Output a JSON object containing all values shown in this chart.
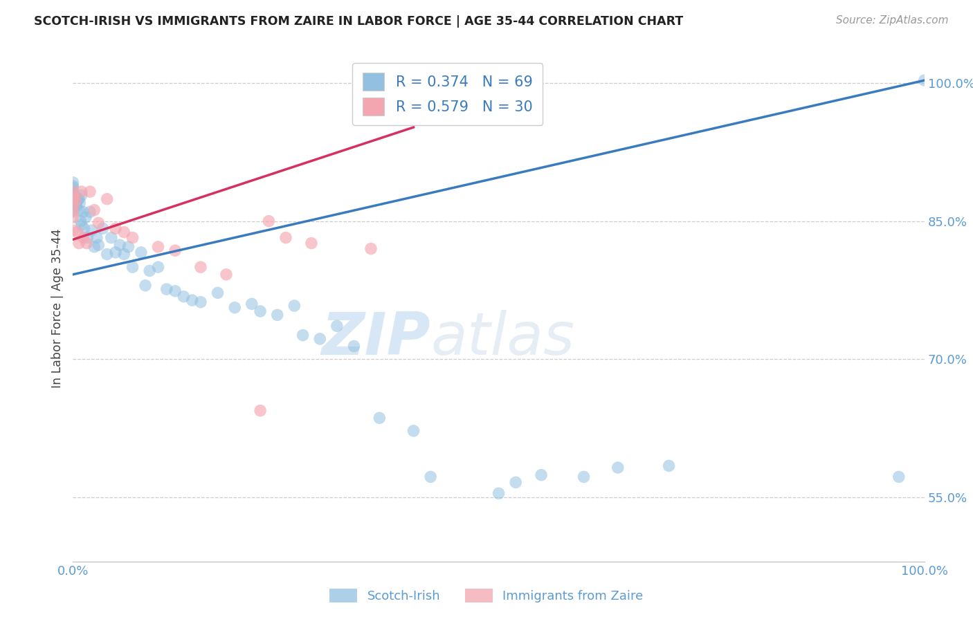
{
  "title": "SCOTCH-IRISH VS IMMIGRANTS FROM ZAIRE IN LABOR FORCE | AGE 35-44 CORRELATION CHART",
  "source": "Source: ZipAtlas.com",
  "ylabel": "In Labor Force | Age 35-44",
  "xlim": [
    0.0,
    1.0
  ],
  "ylim": [
    0.48,
    1.03
  ],
  "ytick_values": [
    0.55,
    0.7,
    0.85,
    1.0
  ],
  "ytick_labels": [
    "55.0%",
    "70.0%",
    "85.0%",
    "100.0%"
  ],
  "xtick_values": [
    0.0,
    1.0
  ],
  "xtick_labels": [
    "0.0%",
    "100.0%"
  ],
  "blue_R": 0.374,
  "blue_N": 69,
  "pink_R": 0.579,
  "pink_N": 30,
  "blue_color": "#92c0e0",
  "pink_color": "#f4a6b0",
  "blue_line_color": "#3a7bbf",
  "pink_line_color": "#d63060",
  "watermark_zip": "ZIP",
  "watermark_atlas": "atlas",
  "legend_blue_label": "Scotch-Irish",
  "legend_pink_label": "Immigrants from Zaire",
  "background_color": "#ffffff",
  "grid_color": "#cccccc",
  "title_color": "#222222",
  "axis_label_color": "#444444",
  "tick_color": "#5b9bd5",
  "blue_scatter_x": [
    0.0,
    0.0,
    0.0,
    0.0,
    0.0,
    0.0,
    0.0,
    0.0,
    0.0,
    0.0,
    0.003,
    0.003,
    0.004,
    0.004,
    0.005,
    0.006,
    0.007,
    0.007,
    0.008,
    0.009,
    0.01,
    0.01,
    0.012,
    0.013,
    0.015,
    0.017,
    0.02,
    0.022,
    0.025,
    0.028,
    0.03,
    0.035,
    0.04,
    0.045,
    0.05,
    0.055,
    0.06,
    0.065,
    0.07,
    0.08,
    0.085,
    0.09,
    0.1,
    0.11,
    0.12,
    0.13,
    0.14,
    0.15,
    0.17,
    0.19,
    0.21,
    0.22,
    0.24,
    0.26,
    0.27,
    0.29,
    0.31,
    0.33,
    0.36,
    0.4,
    0.42,
    0.5,
    0.52,
    0.55,
    0.6,
    0.64,
    0.7,
    0.97,
    1.0
  ],
  "blue_scatter_y": [
    0.862,
    0.87,
    0.876,
    0.882,
    0.886,
    0.878,
    0.874,
    0.88,
    0.888,
    0.892,
    0.876,
    0.868,
    0.876,
    0.866,
    0.872,
    0.874,
    0.874,
    0.862,
    0.87,
    0.85,
    0.878,
    0.846,
    0.86,
    0.842,
    0.854,
    0.832,
    0.86,
    0.84,
    0.822,
    0.832,
    0.824,
    0.842,
    0.814,
    0.832,
    0.816,
    0.824,
    0.814,
    0.822,
    0.8,
    0.816,
    0.78,
    0.796,
    0.8,
    0.776,
    0.774,
    0.768,
    0.764,
    0.762,
    0.772,
    0.756,
    0.76,
    0.752,
    0.748,
    0.758,
    0.726,
    0.722,
    0.736,
    0.714,
    0.636,
    0.622,
    0.572,
    0.554,
    0.566,
    0.574,
    0.572,
    0.582,
    0.584,
    0.572,
    1.003
  ],
  "pink_scatter_x": [
    0.0,
    0.0,
    0.0,
    0.0,
    0.0,
    0.0,
    0.0,
    0.0,
    0.003,
    0.005,
    0.007,
    0.01,
    0.012,
    0.016,
    0.02,
    0.025,
    0.03,
    0.04,
    0.05,
    0.06,
    0.07,
    0.1,
    0.12,
    0.15,
    0.18,
    0.22,
    0.23,
    0.25,
    0.28,
    0.35
  ],
  "pink_scatter_y": [
    0.882,
    0.874,
    0.878,
    0.874,
    0.866,
    0.86,
    0.854,
    0.84,
    0.872,
    0.838,
    0.826,
    0.882,
    0.832,
    0.826,
    0.882,
    0.862,
    0.848,
    0.874,
    0.842,
    0.838,
    0.832,
    0.822,
    0.818,
    0.8,
    0.792,
    0.644,
    0.85,
    0.832,
    0.826,
    0.82
  ],
  "blue_line_x": [
    0.0,
    1.0
  ],
  "blue_line_y": [
    0.792,
    1.003
  ],
  "pink_line_x": [
    0.0,
    0.4
  ],
  "pink_line_y": [
    0.83,
    0.952
  ]
}
